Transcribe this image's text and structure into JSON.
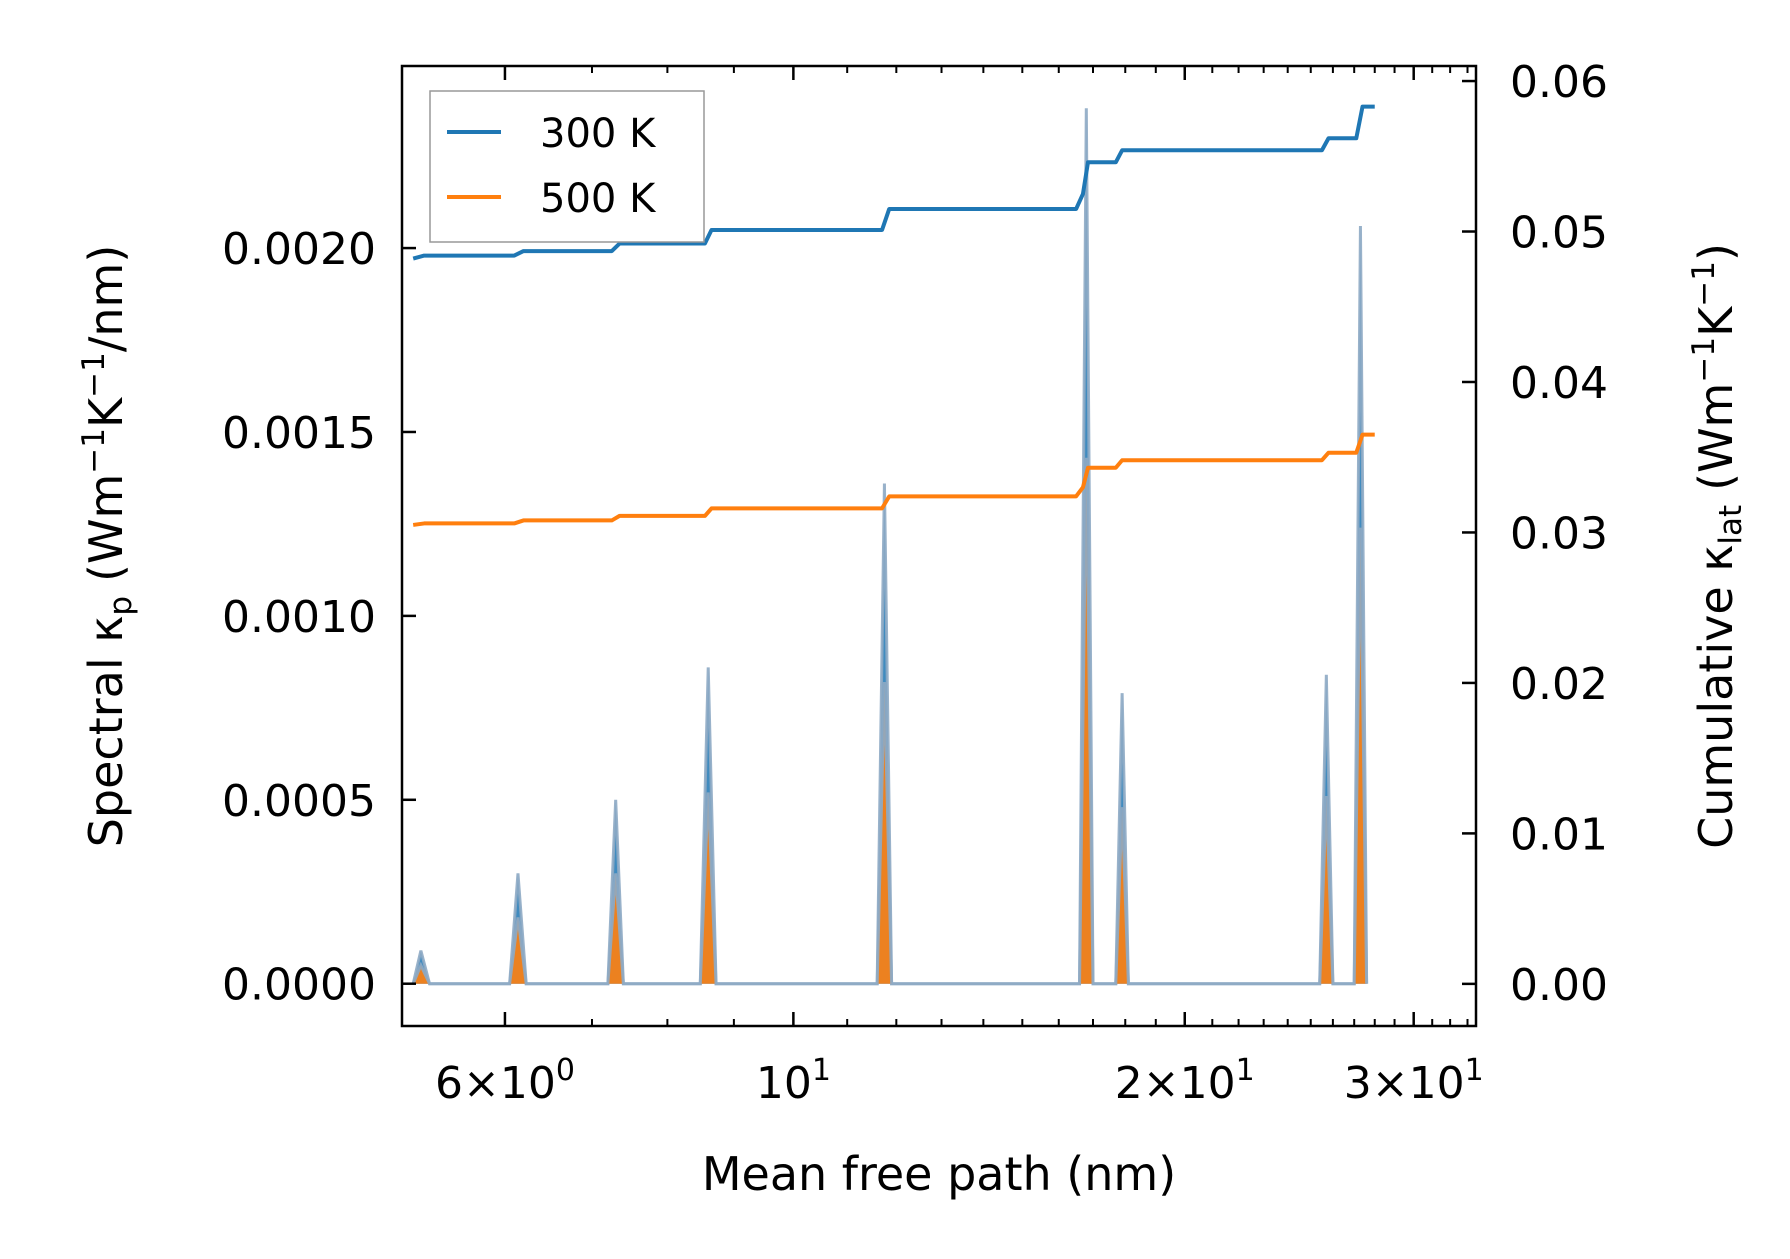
{
  "chart_data": {
    "type": "line",
    "xscale": "log",
    "xlim": [
      5.0,
      33.5
    ],
    "xlabel": "Mean free path (nm)",
    "ylabel_left": {
      "main": "Spectral κ",
      "sub": "p",
      "unit_open": "(Wm",
      "exp1": "−1",
      "unit_mid": "K",
      "exp2": "−1",
      "unit_close": "/nm)"
    },
    "ylabel_right": {
      "main": "Cumulative κ",
      "sub": "lat",
      "unit_open": "(Wm",
      "exp1": "−1",
      "unit_mid": "K",
      "exp2": "−1",
      "unit_close": ")"
    },
    "ylim_left": [
      -0.000115,
      0.002495
    ],
    "ylim_right": [
      -0.0028,
      0.061
    ],
    "xticks": [
      {
        "value": 6,
        "mantissa": "6",
        "times": true,
        "exp": "0"
      },
      {
        "value": 10,
        "mantissa": "10",
        "times": false,
        "exp": "1"
      },
      {
        "value": 20,
        "mantissa": "2",
        "times": true,
        "exp": "1"
      },
      {
        "value": 30,
        "mantissa": "3",
        "times": true,
        "exp": "1"
      }
    ],
    "xminor": [
      5,
      7,
      8,
      9
    ],
    "yticks_left": [
      {
        "value": 0.0,
        "label": "0.0000"
      },
      {
        "value": 0.0005,
        "label": "0.0005"
      },
      {
        "value": 0.001,
        "label": "0.0010"
      },
      {
        "value": 0.0015,
        "label": "0.0015"
      },
      {
        "value": 0.002,
        "label": "0.0020"
      }
    ],
    "yticks_right": [
      {
        "value": 0.0,
        "label": "0.00"
      },
      {
        "value": 0.01,
        "label": "0.01"
      },
      {
        "value": 0.02,
        "label": "0.02"
      },
      {
        "value": 0.03,
        "label": "0.03"
      },
      {
        "value": 0.04,
        "label": "0.04"
      },
      {
        "value": 0.05,
        "label": "0.05"
      },
      {
        "value": 0.06,
        "label": "0.06"
      }
    ],
    "series": [
      {
        "name": "300 K",
        "color": "#1f77b4",
        "spectral": [
          {
            "x": 5.1,
            "y": 0.0
          },
          {
            "x": 5.17,
            "y": 9e-05
          },
          {
            "x": 5.25,
            "y": 0.0
          },
          {
            "x": 6.05,
            "y": 0.0
          },
          {
            "x": 6.14,
            "y": 0.0003
          },
          {
            "x": 6.23,
            "y": 0.0
          },
          {
            "x": 7.2,
            "y": 0.0
          },
          {
            "x": 7.3,
            "y": 0.0005
          },
          {
            "x": 7.4,
            "y": 0.0
          },
          {
            "x": 8.48,
            "y": 0.0
          },
          {
            "x": 8.6,
            "y": 0.00086
          },
          {
            "x": 8.72,
            "y": 0.0
          },
          {
            "x": 11.6,
            "y": 0.0
          },
          {
            "x": 11.75,
            "y": 0.00136
          },
          {
            "x": 11.9,
            "y": 0.0
          },
          {
            "x": 16.6,
            "y": 0.0
          },
          {
            "x": 16.8,
            "y": 0.00238
          },
          {
            "x": 17.0,
            "y": 0.0
          },
          {
            "x": 17.7,
            "y": 0.0
          },
          {
            "x": 17.9,
            "y": 0.00079
          },
          {
            "x": 18.1,
            "y": 0.0
          },
          {
            "x": 25.4,
            "y": 0.0
          },
          {
            "x": 25.7,
            "y": 0.00084
          },
          {
            "x": 26.0,
            "y": 0.0
          },
          {
            "x": 27.0,
            "y": 0.0
          },
          {
            "x": 27.3,
            "y": 0.00206
          },
          {
            "x": 27.6,
            "y": 0.0
          }
        ],
        "cumulative": [
          {
            "x": 5.1,
            "y": 0.0482
          },
          {
            "x": 5.2,
            "y": 0.0484
          },
          {
            "x": 6.1,
            "y": 0.0484
          },
          {
            "x": 6.2,
            "y": 0.0487
          },
          {
            "x": 7.25,
            "y": 0.0487
          },
          {
            "x": 7.35,
            "y": 0.0492
          },
          {
            "x": 8.55,
            "y": 0.0492
          },
          {
            "x": 8.65,
            "y": 0.0501
          },
          {
            "x": 11.7,
            "y": 0.0501
          },
          {
            "x": 11.85,
            "y": 0.0515
          },
          {
            "x": 16.5,
            "y": 0.0515
          },
          {
            "x": 16.7,
            "y": 0.0525
          },
          {
            "x": 16.85,
            "y": 0.0546
          },
          {
            "x": 17.7,
            "y": 0.0546
          },
          {
            "x": 17.9,
            "y": 0.0554
          },
          {
            "x": 25.5,
            "y": 0.0554
          },
          {
            "x": 25.8,
            "y": 0.0562
          },
          {
            "x": 27.1,
            "y": 0.0562
          },
          {
            "x": 27.4,
            "y": 0.0583
          },
          {
            "x": 28.0,
            "y": 0.0583
          }
        ]
      },
      {
        "name": "500 K",
        "color": "#ff7f0e",
        "spectral": [
          {
            "x": 5.1,
            "y": 0.0
          },
          {
            "x": 5.17,
            "y": 5e-05
          },
          {
            "x": 5.25,
            "y": 0.0
          },
          {
            "x": 6.05,
            "y": 0.0
          },
          {
            "x": 6.14,
            "y": 0.00018
          },
          {
            "x": 6.23,
            "y": 0.0
          },
          {
            "x": 7.2,
            "y": 0.0
          },
          {
            "x": 7.3,
            "y": 0.0003
          },
          {
            "x": 7.4,
            "y": 0.0
          },
          {
            "x": 8.48,
            "y": 0.0
          },
          {
            "x": 8.6,
            "y": 0.00052
          },
          {
            "x": 8.72,
            "y": 0.0
          },
          {
            "x": 11.6,
            "y": 0.0
          },
          {
            "x": 11.75,
            "y": 0.00082
          },
          {
            "x": 11.9,
            "y": 0.0
          },
          {
            "x": 16.6,
            "y": 0.0
          },
          {
            "x": 16.8,
            "y": 0.00143
          },
          {
            "x": 17.0,
            "y": 0.0
          },
          {
            "x": 17.7,
            "y": 0.0
          },
          {
            "x": 17.9,
            "y": 0.00048
          },
          {
            "x": 18.1,
            "y": 0.0
          },
          {
            "x": 25.4,
            "y": 0.0
          },
          {
            "x": 25.7,
            "y": 0.00051
          },
          {
            "x": 26.0,
            "y": 0.0
          },
          {
            "x": 27.0,
            "y": 0.0
          },
          {
            "x": 27.3,
            "y": 0.00124
          },
          {
            "x": 27.6,
            "y": 0.0
          }
        ],
        "cumulative": [
          {
            "x": 5.1,
            "y": 0.0305
          },
          {
            "x": 5.2,
            "y": 0.0306
          },
          {
            "x": 6.1,
            "y": 0.0306
          },
          {
            "x": 6.2,
            "y": 0.0308
          },
          {
            "x": 7.25,
            "y": 0.0308
          },
          {
            "x": 7.35,
            "y": 0.0311
          },
          {
            "x": 8.55,
            "y": 0.0311
          },
          {
            "x": 8.65,
            "y": 0.0316
          },
          {
            "x": 11.7,
            "y": 0.0316
          },
          {
            "x": 11.85,
            "y": 0.0324
          },
          {
            "x": 16.5,
            "y": 0.0324
          },
          {
            "x": 16.7,
            "y": 0.033
          },
          {
            "x": 16.85,
            "y": 0.0343
          },
          {
            "x": 17.7,
            "y": 0.0343
          },
          {
            "x": 17.9,
            "y": 0.0348
          },
          {
            "x": 25.5,
            "y": 0.0348
          },
          {
            "x": 25.8,
            "y": 0.0353
          },
          {
            "x": 27.1,
            "y": 0.0353
          },
          {
            "x": 27.4,
            "y": 0.0365
          },
          {
            "x": 28.0,
            "y": 0.0365
          }
        ]
      }
    ],
    "spectral_edge_color": "#8eaac4",
    "legend": {
      "placement": "top-left",
      "entries": [
        "300 K",
        "500 K"
      ]
    }
  }
}
